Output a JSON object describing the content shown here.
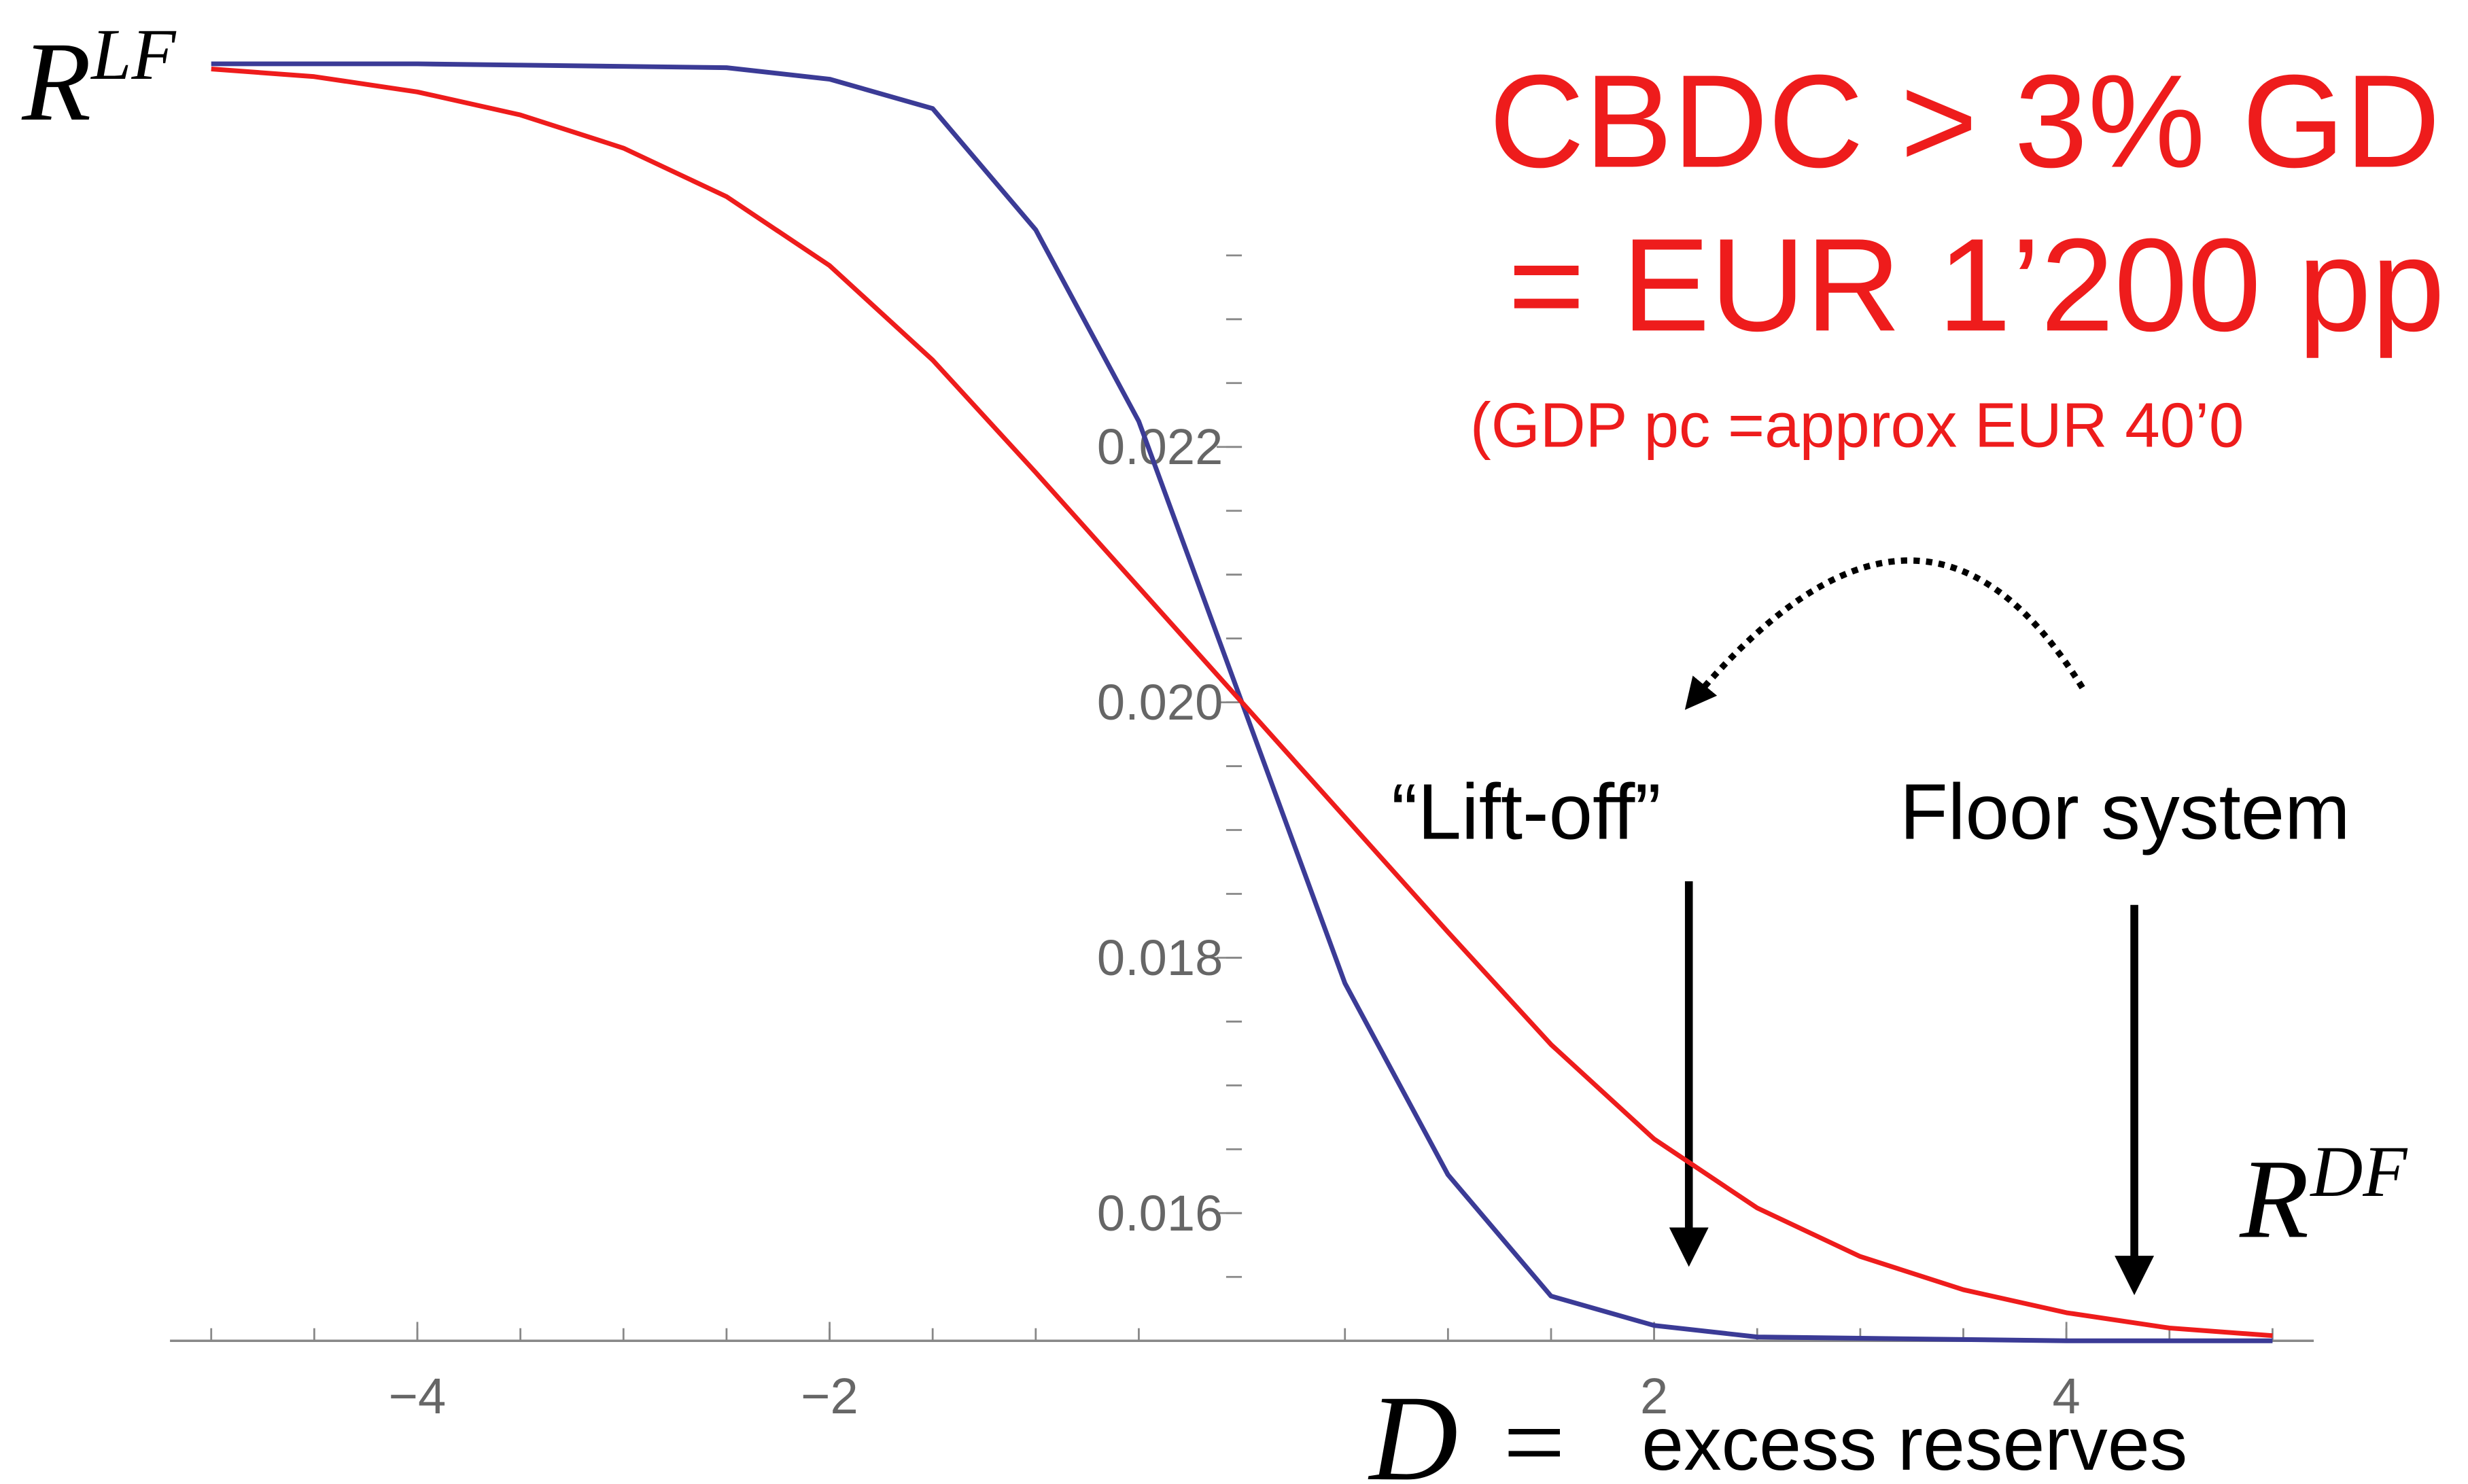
{
  "chart_data": {
    "type": "line",
    "x": [
      -5,
      -4.5,
      -4,
      -3.5,
      -3,
      -2.5,
      -2,
      -1.5,
      -1,
      -0.5,
      0,
      0.5,
      1,
      1.5,
      2,
      2.5,
      3,
      3.5,
      4,
      4.5,
      5
    ],
    "series": [
      {
        "color": "#3b3b96",
        "values": [
          0.025,
          0.025,
          0.025,
          0.02499,
          0.02498,
          0.02497,
          0.02488,
          0.02465,
          0.0237,
          0.0222,
          0.02,
          0.0178,
          0.0163,
          0.01535,
          0.01512,
          0.01503,
          0.01502,
          0.01501,
          0.015,
          0.015,
          0.015
        ]
      },
      {
        "color": "#ee1c1c",
        "values": [
          0.02496,
          0.0249,
          0.02478,
          0.0246,
          0.02434,
          0.02396,
          0.02342,
          0.02268,
          0.0218,
          0.0209,
          0.02,
          0.0191,
          0.0182,
          0.01732,
          0.01658,
          0.01604,
          0.01566,
          0.0154,
          0.01522,
          0.0151,
          0.01504
        ]
      }
    ],
    "xlim": [
      -5.2,
      5.2
    ],
    "ylim": [
      0.015,
      0.0255
    ],
    "xticks": [
      {
        "value": -4,
        "label": "−4"
      },
      {
        "value": -2,
        "label": "−2"
      },
      {
        "value": 2,
        "label": "2"
      },
      {
        "value": 4,
        "label": "4"
      }
    ],
    "xminorticks": [
      -5,
      -4.5,
      -4,
      -3.5,
      -3,
      -2.5,
      -2,
      -1.5,
      -1,
      -0.5,
      0.5,
      1,
      1.5,
      2,
      2.5,
      3,
      3.5,
      4,
      4.5,
      5
    ],
    "yticks": [
      {
        "value": 0.016,
        "label": "0.016"
      },
      {
        "value": 0.018,
        "label": "0.018"
      },
      {
        "value": 0.02,
        "label": "0.020"
      },
      {
        "value": 0.022,
        "label": "0.022"
      }
    ],
    "yminorticks": [
      0.0155,
      0.016,
      0.0165,
      0.017,
      0.0175,
      0.018,
      0.0185,
      0.019,
      0.0195,
      0.02,
      0.0205,
      0.021,
      0.0215,
      0.022,
      0.0225,
      0.023,
      0.0235
    ],
    "top_label": {
      "base": "R",
      "sup": "LF"
    },
    "bottom_label": {
      "base": "R",
      "sup": "DF"
    },
    "xlabel": {
      "symbol": "D",
      "equals": "=",
      "text": "excess reserves"
    },
    "annotations": [
      "CBDC > 3% GD",
      "= EUR 1’200 pp",
      "(GDP pc =approx EUR 40’0",
      "“Lift-off”",
      "Floor system"
    ]
  }
}
